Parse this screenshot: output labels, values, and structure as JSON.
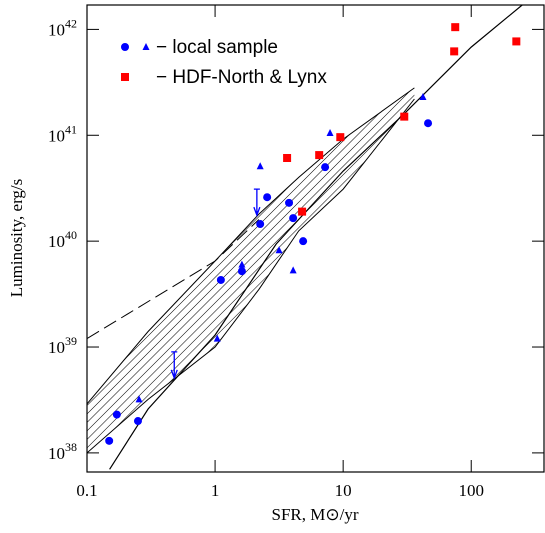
{
  "chart_data": {
    "type": "scatter",
    "xlabel": "SFR, M⊙/yr",
    "ylabel": "Luminosity, erg/s",
    "log_x": true,
    "log_y": true,
    "xlim": [
      0.1,
      370
    ],
    "ylim": [
      6.6e+37,
      1.7e+42
    ],
    "xticks": [
      0.1,
      1,
      10,
      100
    ],
    "yticks": [
      {
        "value": 1e+38,
        "label": "10^38"
      },
      {
        "value": 1e+39,
        "label": "10^39"
      },
      {
        "value": 1e+40,
        "label": "10^40"
      },
      {
        "value": 1e+41,
        "label": "10^41"
      },
      {
        "value": 1e+42,
        "label": "10^42"
      }
    ],
    "series": [
      {
        "marker": "circle",
        "color": "#0000ff",
        "x": [
          0.149,
          0.171,
          0.25,
          1.11,
          1.62,
          2.25,
          2.55,
          3.78,
          4.07,
          4.87,
          7.23,
          46
        ],
        "values": [
          1.3e+38,
          2.3e+38,
          2e+38,
          4.3e+39,
          5.2e+39,
          1.45e+40,
          2.6e+40,
          2.3e+40,
          1.65e+40,
          1e+40,
          5e+40,
          1.3e+41
        ]
      },
      {
        "marker": "triangle",
        "color": "#0000ff",
        "x": [
          0.255,
          1.04,
          1.62,
          2.25,
          3.16,
          4.07,
          7.9,
          42
        ],
        "values": [
          3.2e+38,
          1.2e+39,
          6e+39,
          5.1e+40,
          8.2e+39,
          5.3e+39,
          1.05e+41,
          2.3e+41
        ]
      },
      {
        "marker": "square",
        "color": "#ff0000",
        "x": [
          3.65,
          4.78,
          6.5,
          9.5,
          30,
          73.6,
          75,
          225
        ],
        "values": [
          6.1e+40,
          1.9e+40,
          6.5e+40,
          9.6e+40,
          1.5e+41,
          6.2e+41,
          1.05e+42,
          7.7e+41
        ]
      }
    ],
    "upper_limits": {
      "color": "#0000ff",
      "x": [
        2.12,
        0.48
      ],
      "values": [
        3.1e+40,
        9e+38
      ]
    },
    "legend": [
      {
        "label": "− local sample",
        "color": "#0000ff",
        "markers": [
          "circle",
          "triangle"
        ]
      },
      {
        "label": "− HDF-North & Lynx",
        "color": "#ff0000",
        "markers": [
          "square"
        ]
      }
    ],
    "band": {
      "x": [
        0.1,
        0.3,
        1,
        2.2,
        4.5,
        10,
        36
      ],
      "upper": [
        2.9e+38,
        1.4e+39,
        6.5e+39,
        1.8e+40,
        4e+40,
        9.2e+40,
        2.8e+41
      ],
      "lower": [
        1e+38,
        3.2e+38,
        1e+39,
        3.5e+39,
        1.25e+40,
        3.1e+40,
        2.2e+41
      ]
    },
    "solid_line": {
      "x": [
        0.15,
        0.3,
        1,
        3,
        10,
        30,
        100,
        250
      ],
      "values": [
        7e+37,
        2.6e+38,
        1.3e+39,
        9.4e+39,
        4.6e+40,
        1.6e+41,
        6.8e+41,
        1.7e+42
      ]
    },
    "dashed_line": {
      "x": [
        0.1,
        1,
        2.2
      ],
      "values": [
        1.2e+39,
        6.5e+39,
        1.6e+40
      ]
    }
  }
}
